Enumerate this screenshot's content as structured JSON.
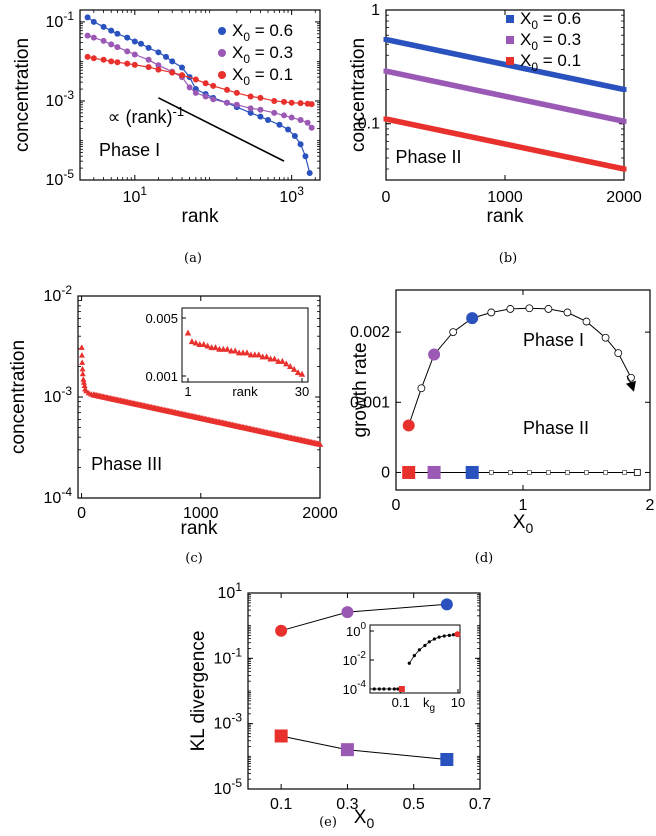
{
  "chart_data": [
    {
      "id": "a",
      "caption": "(a)",
      "type": "scatter",
      "xlabel": "rank",
      "ylabel": "concentration",
      "x_scale": "log",
      "y_scale": "log",
      "xlim": [
        2,
        2300
      ],
      "ylim": [
        1e-05,
        0.2
      ],
      "x_ticks": [
        {
          "value": 10,
          "base": "10",
          "exp": "1"
        },
        {
          "value": 1000,
          "base": "10",
          "exp": "3"
        }
      ],
      "y_ticks": [
        {
          "value": 0.1,
          "base": "10",
          "exp": "-1"
        },
        {
          "value": 0.001,
          "base": "10",
          "exp": "-3"
        },
        {
          "value": 1e-05,
          "base": "10",
          "exp": "-5"
        }
      ],
      "annotations": [
        {
          "text": "Phase I",
          "x": 3.5,
          "y": 4e-05
        },
        {
          "text": "∝ (rank)",
          "sup": "-1",
          "x": 4.5,
          "y": 0.00028
        }
      ],
      "reference_line": {
        "x": [
          20,
          800
        ],
        "y": [
          0.0012,
          3e-05
        ]
      },
      "legend": {
        "position": "top-right"
      },
      "series": [
        {
          "name_prefix": "X",
          "name_sub": "0",
          "name_suffix": " = 0.6",
          "color": "#2a52be",
          "points": [
            [
              2.5,
              0.13
            ],
            [
              3,
              0.1
            ],
            [
              4,
              0.075
            ],
            [
              5,
              0.06
            ],
            [
              6,
              0.05
            ],
            [
              8,
              0.04
            ],
            [
              10,
              0.032
            ],
            [
              12,
              0.028
            ],
            [
              15,
              0.022
            ],
            [
              20,
              0.017
            ],
            [
              25,
              0.013
            ],
            [
              30,
              0.01
            ],
            [
              40,
              0.007
            ],
            [
              50,
              0.004
            ],
            [
              60,
              0.002
            ],
            [
              80,
              0.0015
            ],
            [
              100,
              0.0012
            ],
            [
              150,
              0.0009
            ],
            [
              200,
              0.0007
            ],
            [
              300,
              0.0005
            ],
            [
              400,
              0.0004
            ],
            [
              500,
              0.00033
            ],
            [
              700,
              0.00025
            ],
            [
              900,
              0.00019
            ],
            [
              1100,
              0.00013
            ],
            [
              1300,
              8e-05
            ],
            [
              1500,
              4e-05
            ],
            [
              1700,
              1.5e-05
            ]
          ]
        },
        {
          "name_prefix": "X",
          "name_sub": "0",
          "name_suffix": " = 0.3",
          "color": "#9b59b6",
          "points": [
            [
              2.5,
              0.045
            ],
            [
              3,
              0.04
            ],
            [
              4,
              0.033
            ],
            [
              5,
              0.027
            ],
            [
              6,
              0.023
            ],
            [
              8,
              0.018
            ],
            [
              10,
              0.015
            ],
            [
              15,
              0.011
            ],
            [
              20,
              0.008
            ],
            [
              30,
              0.0055
            ],
            [
              40,
              0.004
            ],
            [
              50,
              0.0022
            ],
            [
              60,
              0.0016
            ],
            [
              80,
              0.0013
            ],
            [
              100,
              0.0011
            ],
            [
              150,
              0.0009
            ],
            [
              200,
              0.0008
            ],
            [
              300,
              0.00065
            ],
            [
              400,
              0.0006
            ],
            [
              600,
              0.0005
            ],
            [
              800,
              0.00043
            ],
            [
              1000,
              0.00038
            ],
            [
              1300,
              0.00033
            ],
            [
              1600,
              0.00028
            ],
            [
              1800,
              0.00021
            ]
          ]
        },
        {
          "name_prefix": "X",
          "name_sub": "0",
          "name_suffix": " = 0.1",
          "color": "#e8302c",
          "points": [
            [
              2.5,
              0.013
            ],
            [
              3,
              0.012
            ],
            [
              4,
              0.011
            ],
            [
              5,
              0.01
            ],
            [
              6,
              0.0095
            ],
            [
              8,
              0.0088
            ],
            [
              10,
              0.0082
            ],
            [
              15,
              0.0072
            ],
            [
              20,
              0.0062
            ],
            [
              30,
              0.0052
            ],
            [
              40,
              0.0045
            ],
            [
              60,
              0.0035
            ],
            [
              80,
              0.0028
            ],
            [
              100,
              0.0024
            ],
            [
              150,
              0.0019
            ],
            [
              200,
              0.0016
            ],
            [
              300,
              0.0013
            ],
            [
              400,
              0.0012
            ],
            [
              600,
              0.001
            ],
            [
              800,
              0.00095
            ],
            [
              1000,
              0.0009
            ],
            [
              1300,
              0.00088
            ],
            [
              1600,
              0.00085
            ],
            [
              1800,
              0.00083
            ]
          ]
        }
      ]
    },
    {
      "id": "b",
      "caption": "(b)",
      "type": "scatter",
      "xlabel": "rank",
      "ylabel": "concentration",
      "x_scale": "linear",
      "y_scale": "log",
      "xlim": [
        0,
        2000
      ],
      "ylim": [
        0.032,
        1
      ],
      "x_ticks": [
        {
          "value": 0,
          "label": "0"
        },
        {
          "value": 1000,
          "label": "1000"
        },
        {
          "value": 2000,
          "label": "2000"
        }
      ],
      "y_ticks": [
        {
          "value": 1,
          "label": "1"
        },
        {
          "value": 0.1,
          "label": "0.1"
        }
      ],
      "annotations": [
        {
          "text": "Phase II",
          "x": 80,
          "y": 0.045
        }
      ],
      "legend": {
        "position": "top-right"
      },
      "series": [
        {
          "name_prefix": "X",
          "name_sub": "0",
          "name_suffix": " = 0.6",
          "color": "#2a52be",
          "line": {
            "x": [
              0,
              2000
            ],
            "y": [
              0.55,
              0.2
            ]
          }
        },
        {
          "name_prefix": "X",
          "name_sub": "0",
          "name_suffix": " = 0.3",
          "color": "#9b59b6",
          "line": {
            "x": [
              0,
              2000
            ],
            "y": [
              0.29,
              0.105
            ]
          }
        },
        {
          "name_prefix": "X",
          "name_sub": "0",
          "name_suffix": " = 0.1",
          "color": "#e8302c",
          "line": {
            "x": [
              0,
              2000
            ],
            "y": [
              0.11,
              0.04
            ]
          }
        }
      ]
    },
    {
      "id": "c",
      "caption": "(c)",
      "type": "scatter",
      "xlabel": "rank",
      "ylabel": "concentration",
      "x_scale": "linear",
      "y_scale": "log",
      "xlim": [
        -30,
        2000
      ],
      "ylim": [
        0.0001,
        0.01
      ],
      "x_ticks": [
        {
          "value": 0,
          "label": "0"
        },
        {
          "value": 1000,
          "label": "1000"
        },
        {
          "value": 2000,
          "label": "2000"
        }
      ],
      "y_ticks": [
        {
          "value": 0.01,
          "base": "10",
          "exp": "-2"
        },
        {
          "value": 0.001,
          "base": "10",
          "exp": "-3"
        },
        {
          "value": 0.0001,
          "base": "10",
          "exp": "-4"
        }
      ],
      "annotations": [
        {
          "text": "Phase III",
          "x": 80,
          "y": 0.00019
        }
      ],
      "series": [
        {
          "color": "#e8302c",
          "head": [
            [
              1,
              0.0031
            ],
            [
              3,
              0.0026
            ],
            [
              5,
              0.0022
            ],
            [
              8,
              0.0019
            ],
            [
              10,
              0.0017
            ],
            [
              15,
              0.0015
            ],
            [
              20,
              0.0014
            ],
            [
              25,
              0.0013
            ],
            [
              30,
              0.0012
            ],
            [
              40,
              0.00115
            ],
            [
              60,
              0.0011
            ],
            [
              80,
              0.00107
            ]
          ],
          "line": {
            "x": [
              100,
              2000
            ],
            "y": [
              0.00105,
              0.00034
            ]
          }
        }
      ],
      "inset": {
        "type": "scatter",
        "xlabel": "rank",
        "x_scale": "linear",
        "y_scale": "log",
        "xlim": [
          1,
          30
        ],
        "ylim": [
          0.001,
          0.005
        ],
        "x_ticks": [
          {
            "value": 1,
            "label": "1"
          },
          {
            "value": 30,
            "label": "30"
          }
        ],
        "y_ticks": [
          {
            "value": 0.005,
            "label": "0.005"
          },
          {
            "value": 0.001,
            "label": "0.001"
          }
        ],
        "color": "#e8302c",
        "points": [
          [
            1,
            0.0033
          ],
          [
            2,
            0.0026
          ],
          [
            3,
            0.0025
          ],
          [
            4,
            0.0024
          ],
          [
            5,
            0.0024
          ],
          [
            6,
            0.0023
          ],
          [
            7,
            0.0022
          ],
          [
            8,
            0.0022
          ],
          [
            9,
            0.0021
          ],
          [
            10,
            0.0021
          ],
          [
            11,
            0.0021
          ],
          [
            12,
            0.002
          ],
          [
            13,
            0.002
          ],
          [
            14,
            0.0019
          ],
          [
            15,
            0.0019
          ],
          [
            16,
            0.0019
          ],
          [
            17,
            0.0018
          ],
          [
            18,
            0.0018
          ],
          [
            19,
            0.0018
          ],
          [
            20,
            0.0017
          ],
          [
            21,
            0.0017
          ],
          [
            22,
            0.0016
          ],
          [
            23,
            0.0016
          ],
          [
            24,
            0.0015
          ],
          [
            25,
            0.0015
          ],
          [
            26,
            0.0014
          ],
          [
            27,
            0.0013
          ],
          [
            28,
            0.0012
          ],
          [
            29,
            0.0011
          ],
          [
            30,
            0.00105
          ]
        ]
      }
    },
    {
      "id": "d",
      "caption": "(d)",
      "type": "line",
      "xlabel_base": "X",
      "xlabel_sub": "0",
      "ylabel": "growth rate",
      "x_scale": "linear",
      "y_scale": "linear",
      "xlim": [
        0,
        2
      ],
      "ylim": [
        -0.00025,
        0.0026
      ],
      "x_ticks": [
        {
          "value": 0,
          "label": "0"
        },
        {
          "value": 1,
          "label": "1"
        },
        {
          "value": 2,
          "label": "2"
        }
      ],
      "y_ticks": [
        {
          "value": 0,
          "label": "0"
        },
        {
          "value": 0.001,
          "label": "0.001"
        },
        {
          "value": 0.002,
          "label": "0.002"
        }
      ],
      "annotations": [
        {
          "text": "Phase I",
          "x": 1.0,
          "y": 0.0018
        },
        {
          "text": "Phase II",
          "x": 1.0,
          "y": 0.00055
        }
      ],
      "upper_curve": [
        [
          0.1,
          0.00067
        ],
        [
          0.2,
          0.0012
        ],
        [
          0.3,
          0.00168
        ],
        [
          0.45,
          0.002
        ],
        [
          0.6,
          0.0022
        ],
        [
          0.75,
          0.00228
        ],
        [
          0.9,
          0.00233
        ],
        [
          1.05,
          0.00234
        ],
        [
          1.2,
          0.00233
        ],
        [
          1.35,
          0.00228
        ],
        [
          1.5,
          0.00215
        ],
        [
          1.65,
          0.00192
        ],
        [
          1.75,
          0.0017
        ],
        [
          1.85,
          0.00135
        ]
      ],
      "big_points": [
        {
          "x": 0.1,
          "y": 0.00067,
          "color": "#e8302c"
        },
        {
          "x": 0.3,
          "y": 0.00168,
          "color": "#9b59b6"
        },
        {
          "x": 0.6,
          "y": 0.0022,
          "color": "#2a52be"
        }
      ],
      "lower_line": {
        "x": [
          0.1,
          1.9
        ],
        "y": 0
      },
      "squares": [
        {
          "x": 0.1,
          "y": 0,
          "color": "#e8302c"
        },
        {
          "x": 0.3,
          "y": 0,
          "color": "#9b59b6"
        },
        {
          "x": 0.6,
          "y": 0,
          "color": "#2a52be"
        }
      ],
      "open_square": {
        "x": 1.9,
        "y": 0
      }
    },
    {
      "id": "e",
      "caption": "(e)",
      "type": "line",
      "xlabel_base": "X",
      "xlabel_sub": "0",
      "ylabel": "KL divergence",
      "x_scale": "linear",
      "y_scale": "log",
      "xlim": [
        0,
        0.7
      ],
      "ylim": [
        1e-05,
        10
      ],
      "x_ticks": [
        {
          "value": 0.1,
          "label": "0.1"
        },
        {
          "value": 0.3,
          "label": "0.3"
        },
        {
          "value": 0.5,
          "label": "0.5"
        },
        {
          "value": 0.7,
          "label": "0.7"
        }
      ],
      "y_ticks": [
        {
          "value": 10,
          "base": "10",
          "exp": "1"
        },
        {
          "value": 0.1,
          "base": "10",
          "exp": "-1"
        },
        {
          "value": 0.001,
          "base": "10",
          "exp": "-3"
        },
        {
          "value": 1e-05,
          "base": "10",
          "exp": "-5"
        }
      ],
      "circles": [
        {
          "x": 0.1,
          "y": 0.7,
          "color": "#e8302c"
        },
        {
          "x": 0.3,
          "y": 2.6,
          "color": "#9b59b6"
        },
        {
          "x": 0.6,
          "y": 4.5,
          "color": "#2a52be"
        }
      ],
      "squares": [
        {
          "x": 0.1,
          "y": 0.00042,
          "color": "#e8302c"
        },
        {
          "x": 0.3,
          "y": 0.00016,
          "color": "#9b59b6"
        },
        {
          "x": 0.6,
          "y": 8e-05,
          "color": "#2a52be"
        }
      ],
      "inset": {
        "type": "scatter",
        "xlabel_base": "k",
        "xlabel_sub": "g",
        "x_scale": "log",
        "y_scale": "log",
        "xlim": [
          0.01,
          10
        ],
        "ylim": [
          0.0001,
          1
        ],
        "x_ticks": [
          {
            "value": 0.1,
            "label": "0.1"
          },
          {
            "value": 10,
            "label": "10"
          }
        ],
        "y_ticks": [
          {
            "value": 1,
            "base": "10",
            "exp": "0"
          },
          {
            "value": 0.01,
            "base": "10",
            "exp": "-2"
          },
          {
            "value": 0.0001,
            "base": "10",
            "exp": "-4"
          }
        ],
        "lower_points": [
          [
            0.012,
            0.0001
          ],
          [
            0.018,
            0.0001
          ],
          [
            0.026,
            0.0001
          ],
          [
            0.04,
            0.0001
          ],
          [
            0.06,
            0.0001
          ],
          [
            0.08,
            0.0001
          ],
          [
            0.1,
            0.0001
          ]
        ],
        "upper_points": [
          [
            0.2,
            0.006
          ],
          [
            0.3,
            0.02
          ],
          [
            0.45,
            0.05
          ],
          [
            0.7,
            0.1
          ],
          [
            1,
            0.18
          ],
          [
            1.5,
            0.28
          ],
          [
            2.2,
            0.38
          ],
          [
            3.3,
            0.45
          ],
          [
            5,
            0.5
          ],
          [
            7,
            0.55
          ],
          [
            9,
            0.58
          ]
        ],
        "red_square": [
          0.11,
          0.0001
        ],
        "red_circle": [
          9.5,
          0.6
        ]
      }
    }
  ]
}
